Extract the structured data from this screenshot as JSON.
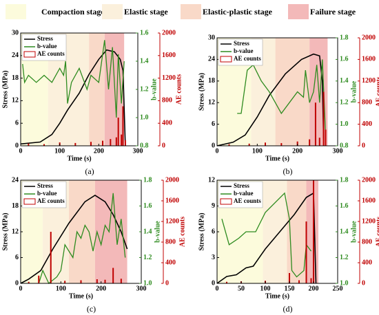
{
  "stages": [
    {
      "name": "Compaction stage",
      "color": "#fcfbdc"
    },
    {
      "name": "Elastic stage",
      "color": "#fbf0dc"
    },
    {
      "name": "Elastic-plastic stage",
      "color": "#f9d9c8"
    },
    {
      "name": "Failure stage",
      "color": "#f3b9b9"
    }
  ],
  "chart_data": [
    {
      "type": "line",
      "panel_label": "(a)",
      "x_label": "Time (s)",
      "y_label": "Stress (MPa)",
      "y2_label": "b-value",
      "y3_label": "AE counts",
      "xlim": [
        0,
        300
      ],
      "xticks": [
        0,
        100,
        200,
        300
      ],
      "ylim": [
        0,
        30
      ],
      "yticks": [
        0,
        6,
        12,
        18,
        24,
        30
      ],
      "y2lim": [
        0.8,
        1.6
      ],
      "y2ticks": [
        {
          "value": 0.8,
          "label": "0.8"
        },
        {
          "value": 1.0,
          "label": "1.0"
        },
        1.2,
        1.4,
        1.6
      ],
      "y3lim": [
        0,
        2000
      ],
      "y3ticks": [
        0,
        400,
        800,
        1200,
        1600,
        2000
      ],
      "stage_bounds": [
        [
          0,
          70
        ],
        [
          70,
          175
        ],
        [
          175,
          215
        ],
        [
          215,
          265
        ]
      ],
      "series": [
        {
          "name": "Stress",
          "color": "#000000",
          "x": [
            0,
            50,
            80,
            100,
            120,
            150,
            175,
            200,
            220,
            240,
            255,
            262,
            268
          ],
          "values": [
            0.5,
            1,
            3,
            6,
            9.5,
            14,
            19,
            23,
            25.5,
            25,
            23,
            20,
            0
          ]
        },
        {
          "name": "b-value",
          "color": "#2e8b1f",
          "axis": "y2",
          "x": [
            5,
            10,
            20,
            40,
            60,
            80,
            100,
            110,
            115,
            120,
            130,
            150,
            170,
            180,
            200,
            215,
            225,
            235,
            245,
            250,
            258,
            265
          ],
          "values": [
            1.38,
            1.25,
            1.3,
            1.25,
            1.3,
            1.25,
            1.35,
            1.3,
            1.4,
            1.1,
            1.25,
            1.35,
            1.2,
            1.3,
            1.25,
            1.55,
            1.2,
            1.5,
            1.0,
            1.45,
            1.1,
            1.4
          ]
        },
        {
          "name": "AE counts",
          "color": "#c00000",
          "axis": "y3",
          "bar": true,
          "x": [
            20,
            60,
            100,
            140,
            180,
            210,
            230,
            245,
            250,
            258,
            262,
            268
          ],
          "values": [
            40,
            30,
            60,
            50,
            70,
            90,
            120,
            150,
            500,
            200,
            700,
            100
          ]
        }
      ]
    },
    {
      "type": "line",
      "panel_label": "(b)",
      "x_label": "Time (s)",
      "y_label": "Stress (MPa)",
      "y2_label": "b-value",
      "y3_label": "AE counts",
      "xlim": [
        0,
        300
      ],
      "xticks": [
        0,
        100,
        200,
        300
      ],
      "ylim": [
        0,
        30
      ],
      "yticks": [
        0,
        6,
        12,
        18,
        24,
        30
      ],
      "y2lim": [
        0.8,
        1.8
      ],
      "y2ticks": [
        {
          "value": 0.8,
          "label": "0.8"
        },
        {
          "value": 1.0,
          "label": "1.0"
        },
        1.2,
        1.4,
        1.6,
        1.8
      ],
      "y3lim": [
        0,
        2000
      ],
      "y3ticks": [
        0,
        400,
        800,
        1200,
        1600,
        2000
      ],
      "stage_bounds": [
        [
          0,
          85
        ],
        [
          85,
          145
        ],
        [
          145,
          230
        ],
        [
          230,
          275
        ]
      ],
      "series": [
        {
          "name": "Stress",
          "color": "#000000",
          "x": [
            0,
            40,
            70,
            100,
            130,
            170,
            210,
            240,
            255,
            262,
            265
          ],
          "values": [
            0,
            1,
            3,
            8,
            14,
            20,
            24,
            25.5,
            25,
            18,
            2
          ]
        },
        {
          "name": "b-value",
          "color": "#2e8b1f",
          "axis": "y2",
          "x": [
            50,
            60,
            75,
            90,
            110,
            130,
            160,
            180,
            200,
            215,
            220,
            230,
            240,
            248,
            255,
            262,
            270
          ],
          "values": [
            1.1,
            1.1,
            1.5,
            1.55,
            1.4,
            1.3,
            1.1,
            1.2,
            1.3,
            1.25,
            1.5,
            1.2,
            1.3,
            1.55,
            1.2,
            1.6,
            0.9
          ]
        },
        {
          "name": "AE counts",
          "color": "#c00000",
          "axis": "y3",
          "bar": true,
          "x": [
            30,
            80,
            120,
            160,
            200,
            230,
            245,
            255,
            265,
            270
          ],
          "values": [
            30,
            40,
            60,
            50,
            80,
            120,
            800,
            150,
            1000,
            300
          ]
        }
      ]
    },
    {
      "type": "line",
      "panel_label": "(c)",
      "x_label": "Time (s)",
      "y_label": "Stress (MPa)",
      "y2_label": "b-value",
      "y3_label": "AE counts",
      "xlim": [
        0,
        300
      ],
      "xticks": [
        0,
        100,
        200,
        300
      ],
      "ylim": [
        0,
        24
      ],
      "yticks": [
        0,
        6,
        12,
        18,
        24
      ],
      "y2lim": [
        1.0,
        1.8
      ],
      "y2ticks": [
        {
          "value": 1.0,
          "label": "1.0"
        },
        1.2,
        1.4,
        1.6,
        1.8
      ],
      "y3lim": [
        0,
        2000
      ],
      "y3ticks": [
        0,
        400,
        800,
        1200,
        1600,
        2000
      ],
      "stage_bounds": [
        [
          0,
          55
        ],
        [
          55,
          120
        ],
        [
          120,
          185
        ],
        [
          185,
          265
        ]
      ],
      "series": [
        {
          "name": "Stress",
          "color": "#000000",
          "x": [
            0,
            20,
            50,
            80,
            120,
            160,
            185,
            210,
            230,
            250,
            265
          ],
          "values": [
            0,
            1,
            3,
            8,
            14,
            19,
            20.5,
            19,
            16,
            12,
            8
          ]
        },
        {
          "name": "b-value",
          "color": "#2e8b1f",
          "axis": "y2",
          "x": [
            45,
            55,
            70,
            90,
            100,
            110,
            120,
            130,
            140,
            150,
            160,
            170,
            180,
            190,
            200,
            210,
            220,
            230,
            240,
            250,
            260
          ],
          "values": [
            1.0,
            1.1,
            1.0,
            1.05,
            1.1,
            1.3,
            1.25,
            1.2,
            1.4,
            1.35,
            1.45,
            1.4,
            1.25,
            1.4,
            1.3,
            1.45,
            1.4,
            1.7,
            1.3,
            1.5,
            1.2
          ]
        },
        {
          "name": "AE counts",
          "color": "#c00000",
          "axis": "y3",
          "bar": true,
          "x": [
            20,
            45,
            75,
            110,
            150,
            190,
            210,
            230,
            250
          ],
          "values": [
            30,
            150,
            1000,
            50,
            60,
            80,
            70,
            300,
            90
          ]
        }
      ]
    },
    {
      "type": "line",
      "panel_label": "(d)",
      "x_label": "Time (s)",
      "y_label": "Stress (MPa)",
      "y2_label": "b-value",
      "y3_label": "AE counts",
      "xlim": [
        0,
        250
      ],
      "xticks": [
        0,
        50,
        100,
        150,
        200,
        250
      ],
      "ylim": [
        0,
        12
      ],
      "yticks": [
        0,
        3,
        6,
        9,
        12
      ],
      "y2lim": [
        1.0,
        1.8
      ],
      "y2ticks": [
        {
          "value": 1.0,
          "label": "1.0"
        },
        1.2,
        1.4,
        1.6,
        1.8
      ],
      "y3lim": [
        0,
        2000
      ],
      "y3ticks": [
        0,
        400,
        800,
        1200,
        1600,
        2000
      ],
      "stage_bounds": [
        [
          0,
          95
        ],
        [
          95,
          145
        ],
        [
          145,
          185
        ],
        [
          185,
          210
        ]
      ],
      "series": [
        {
          "name": "Stress",
          "color": "#000000",
          "x": [
            0,
            20,
            40,
            60,
            75,
            100,
            130,
            160,
            185,
            200,
            205
          ],
          "values": [
            0,
            0.8,
            1,
            1.8,
            2,
            4,
            6,
            8,
            10,
            10.5,
            0
          ]
        },
        {
          "name": "b-value",
          "color": "#2e8b1f",
          "axis": "y2",
          "x": [
            10,
            25,
            45,
            60,
            80,
            100,
            140,
            150,
            155,
            165,
            180,
            185,
            195
          ],
          "values": [
            1.5,
            1.3,
            1.35,
            1.4,
            1.4,
            1.55,
            1.7,
            1.5,
            1.1,
            1.05,
            1.1,
            1.3,
            1.25
          ]
        },
        {
          "name": "AE counts",
          "color": "#c00000",
          "axis": "y3",
          "bar": true,
          "x": [
            20,
            50,
            100,
            150,
            170,
            185,
            195,
            200
          ],
          "values": [
            30,
            40,
            50,
            200,
            60,
            1200,
            100,
            2000
          ]
        }
      ]
    }
  ]
}
